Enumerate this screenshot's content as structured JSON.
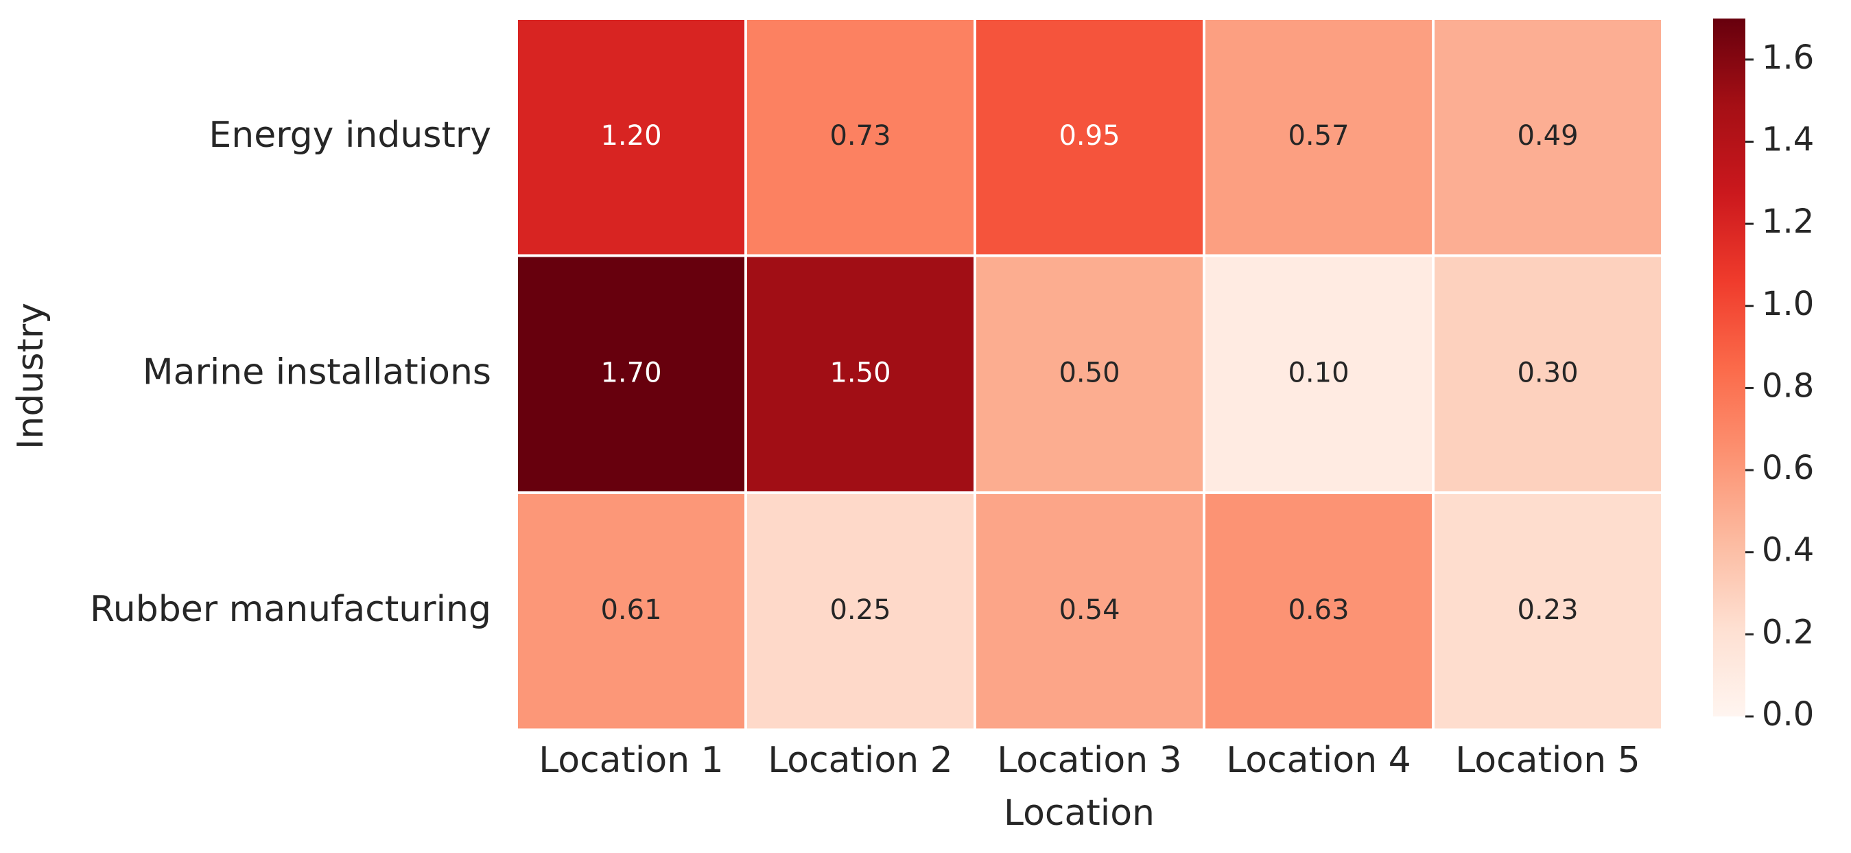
{
  "chart_data": {
    "type": "heatmap",
    "xlabel": "Location",
    "ylabel": "Industry",
    "columns": [
      "Location 1",
      "Location 2",
      "Location 3",
      "Location 4",
      "Location 5"
    ],
    "rows": [
      "Energy industry",
      "Marine installations",
      "Rubber manufacturing"
    ],
    "values": [
      [
        1.2,
        0.73,
        0.95,
        0.57,
        0.49
      ],
      [
        1.7,
        1.5,
        0.5,
        0.1,
        0.3
      ],
      [
        0.61,
        0.25,
        0.54,
        0.63,
        0.23
      ]
    ],
    "value_format_decimals": 2,
    "colormap": "Reds",
    "colorbar": {
      "vmin": 0.0,
      "vmax": 1.7,
      "ticks": [
        0.0,
        0.2,
        0.4,
        0.6,
        0.8,
        1.0,
        1.2,
        1.4,
        1.6
      ],
      "tick_labels": [
        "0.0",
        "0.2",
        "0.4",
        "0.6",
        "0.8",
        "1.0",
        "1.2",
        "1.4",
        "1.6"
      ]
    },
    "grid": false,
    "colors": {
      "cell_border": "#ffffff",
      "text_dark": "#262626",
      "text_light": "#ffffff",
      "axis_text": "#262626"
    }
  }
}
